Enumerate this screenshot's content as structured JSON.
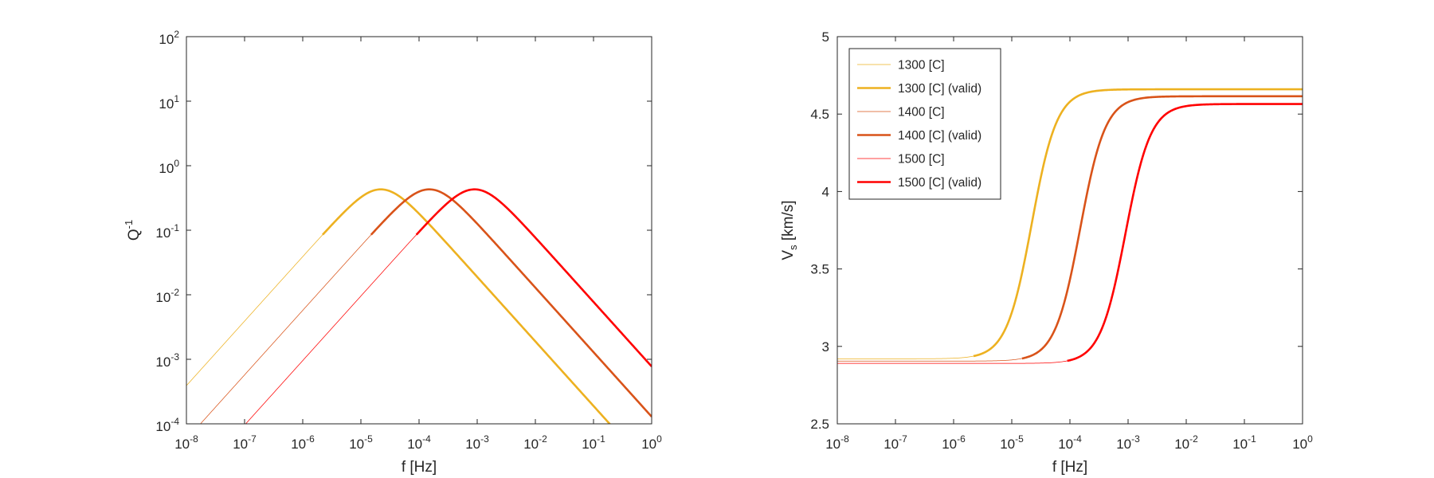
{
  "chart_data": [
    {
      "type": "line",
      "xlabel": "f [Hz]",
      "ylabel": {
        "main": "Q",
        "sup": "-1"
      },
      "xscale": "log",
      "yscale": "log",
      "xlim": [
        1e-08,
        1
      ],
      "ylim": [
        0.0001,
        100
      ],
      "grid": false,
      "x_ticks": [
        {
          "value": 1e-08,
          "base": "10",
          "exp": "-8"
        },
        {
          "value": 1e-07,
          "base": "10",
          "exp": "-7"
        },
        {
          "value": 1e-06,
          "base": "10",
          "exp": "-6"
        },
        {
          "value": 1e-05,
          "base": "10",
          "exp": "-5"
        },
        {
          "value": 0.0001,
          "base": "10",
          "exp": "-4"
        },
        {
          "value": 0.001,
          "base": "10",
          "exp": "-3"
        },
        {
          "value": 0.01,
          "base": "10",
          "exp": "-2"
        },
        {
          "value": 0.1,
          "base": "10",
          "exp": "-1"
        },
        {
          "value": 1,
          "base": "10",
          "exp": "0"
        }
      ],
      "y_ticks": [
        {
          "value": 0.0001,
          "base": "10",
          "exp": "-4"
        },
        {
          "value": 0.001,
          "base": "10",
          "exp": "-3"
        },
        {
          "value": 0.01,
          "base": "10",
          "exp": "-2"
        },
        {
          "value": 0.1,
          "base": "10",
          "exp": "-1"
        },
        {
          "value": 1,
          "base": "10",
          "exp": "0"
        },
        {
          "value": 10,
          "base": "10",
          "exp": "1"
        },
        {
          "value": 100,
          "base": "10",
          "exp": "2"
        }
      ],
      "series": [
        {
          "temperature": 1300,
          "color": "#EDB120",
          "peak_f": 2.2e-05,
          "peak_q": 0.43,
          "valid_from": 2.2e-06
        },
        {
          "temperature": 1400,
          "color": "#D95319",
          "peak_f": 0.00015,
          "peak_q": 0.43,
          "valid_from": 1.5e-05
        },
        {
          "temperature": 1500,
          "color": "#FF0000",
          "peak_f": 0.0009,
          "peak_q": 0.43,
          "valid_from": 9e-05
        }
      ]
    },
    {
      "type": "line",
      "xlabel": "f [Hz]",
      "ylabel": {
        "main": "V",
        "sub": "s",
        "rest": " [km/s]"
      },
      "xscale": "log",
      "yscale": "linear",
      "xlim": [
        1e-08,
        1
      ],
      "ylim": [
        2.5,
        5
      ],
      "grid": false,
      "legend": "top-left",
      "x_ticks": [
        {
          "value": 1e-08,
          "base": "10",
          "exp": "-8"
        },
        {
          "value": 1e-07,
          "base": "10",
          "exp": "-7"
        },
        {
          "value": 1e-06,
          "base": "10",
          "exp": "-6"
        },
        {
          "value": 1e-05,
          "base": "10",
          "exp": "-5"
        },
        {
          "value": 0.0001,
          "base": "10",
          "exp": "-4"
        },
        {
          "value": 0.001,
          "base": "10",
          "exp": "-3"
        },
        {
          "value": 0.01,
          "base": "10",
          "exp": "-2"
        },
        {
          "value": 0.1,
          "base": "10",
          "exp": "-1"
        },
        {
          "value": 1,
          "base": "10",
          "exp": "0"
        }
      ],
      "y_ticks": [
        {
          "value": 2.5,
          "label": "2.5"
        },
        {
          "value": 3,
          "label": "3"
        },
        {
          "value": 3.5,
          "label": "3.5"
        },
        {
          "value": 4,
          "label": "4"
        },
        {
          "value": 4.5,
          "label": "4.5"
        },
        {
          "value": 5,
          "label": "5"
        }
      ],
      "series": [
        {
          "name": "1300 [C]",
          "style": "thin",
          "color": "#EDB120",
          "v_low": 2.92,
          "v_high": 4.66,
          "f_mid": 2.2e-05,
          "from": 1e-08,
          "to": 2.2e-06
        },
        {
          "name": "1300 [C] (valid)",
          "style": "thick",
          "color": "#EDB120",
          "v_low": 2.92,
          "v_high": 4.66,
          "f_mid": 2.2e-05,
          "from": 2.2e-06,
          "to": 1
        },
        {
          "name": "1400 [C]",
          "style": "thin",
          "color": "#D95319",
          "v_low": 2.905,
          "v_high": 4.615,
          "f_mid": 0.00015,
          "from": 1e-08,
          "to": 1.5e-05
        },
        {
          "name": "1400 [C] (valid)",
          "style": "thick",
          "color": "#D95319",
          "v_low": 2.905,
          "v_high": 4.615,
          "f_mid": 0.00015,
          "from": 1.5e-05,
          "to": 1
        },
        {
          "name": "1500 [C]",
          "style": "thin",
          "color": "#FF0000",
          "v_low": 2.89,
          "v_high": 4.565,
          "f_mid": 0.0009,
          "from": 1e-08,
          "to": 9e-05
        },
        {
          "name": "1500 [C] (valid)",
          "style": "thick",
          "color": "#FF0000",
          "v_low": 2.89,
          "v_high": 4.565,
          "f_mid": 0.0009,
          "from": 9e-05,
          "to": 1
        }
      ]
    }
  ]
}
